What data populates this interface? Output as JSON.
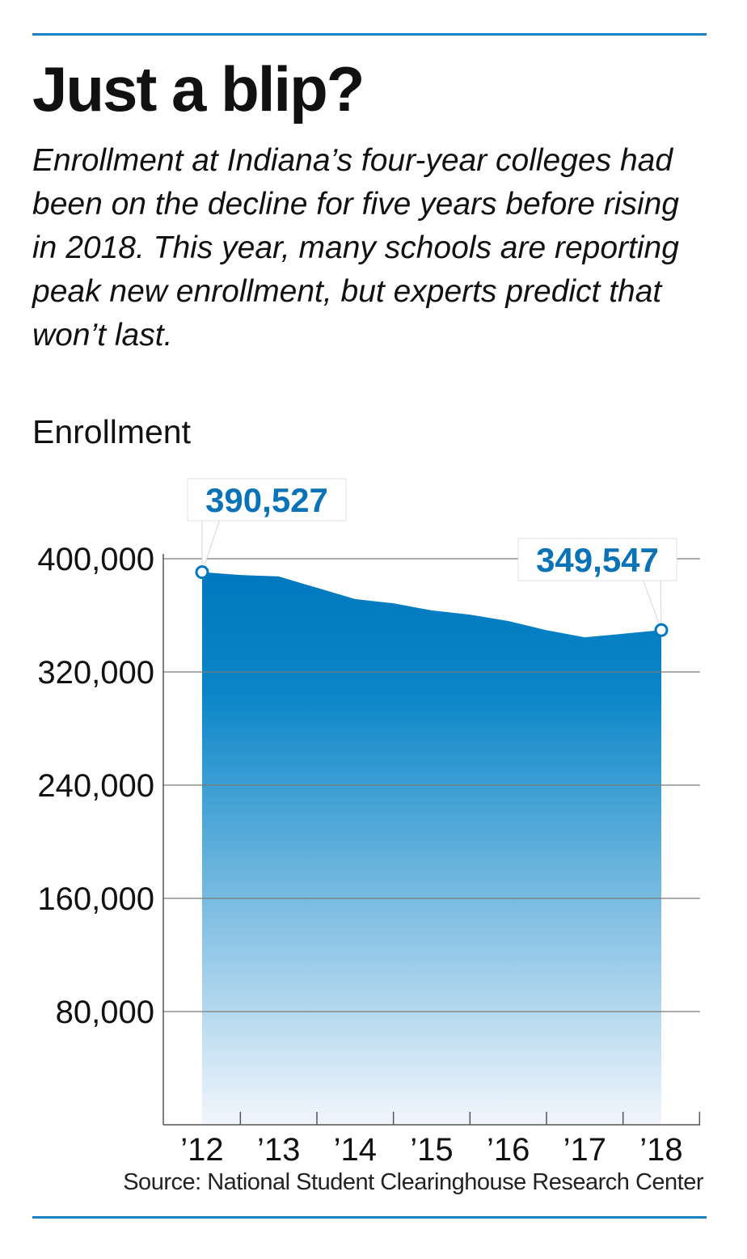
{
  "title": "Just a blip?",
  "subtitle": "Enrollment at Indiana’s four-year colleges had been on the decline for five years before rising in 2018. This year, many schools are reporting peak new enrollment, but experts predict that won’t last.",
  "source": "Source: National Student Clearinghouse Research Center",
  "colors": {
    "accent": "#1a82c4",
    "fill_top": "#0078bf",
    "fill_bottom": "#f2f6fc",
    "label": "#0a73b8"
  },
  "chart_data": {
    "type": "area",
    "ylabel": "Enrollment",
    "xlabel": "",
    "categories": [
      "’12",
      "’13",
      "’14",
      "’15",
      "’16",
      "’17",
      "’18"
    ],
    "x": [
      2012,
      2012.5,
      2013,
      2013.5,
      2014,
      2014.5,
      2015,
      2015.5,
      2016,
      2016.5,
      2017,
      2017.5,
      2018
    ],
    "values": [
      390527,
      388500,
      387500,
      379500,
      371500,
      368500,
      363500,
      360500,
      356000,
      349500,
      344500,
      347000,
      349547
    ],
    "ylim": [
      0,
      400000
    ],
    "yticks": [
      80000,
      160000,
      240000,
      320000,
      400000
    ],
    "ytick_labels": [
      "80,000",
      "160,000",
      "240,000",
      "320,000",
      "400,000"
    ],
    "grid": true,
    "annotations": [
      {
        "label": "390,527",
        "x": 2012,
        "y": 390527
      },
      {
        "label": "349,547",
        "x": 2018,
        "y": 349547
      }
    ]
  }
}
